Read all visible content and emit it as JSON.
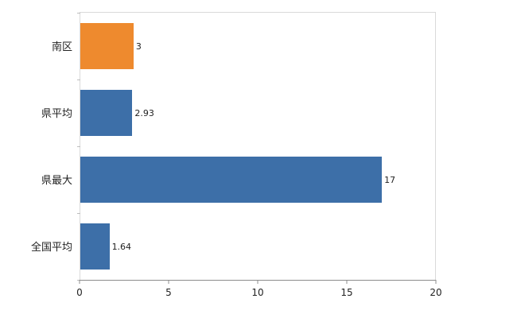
{
  "chart_data": {
    "type": "bar",
    "orientation": "horizontal",
    "title": "",
    "xlabel": "",
    "ylabel": "",
    "categories": [
      "南区",
      "県平均",
      "県最大",
      "全国平均"
    ],
    "values": [
      3,
      2.93,
      17,
      1.64
    ],
    "value_labels": [
      "3",
      "2.93",
      "17",
      "1.64"
    ],
    "bar_colors": [
      "#ee8a2e",
      "#3d6fa8",
      "#3d6fa8",
      "#3d6fa8"
    ],
    "xlim": [
      0,
      20
    ],
    "x_ticks": [
      0,
      5,
      10,
      15,
      20
    ],
    "x_tick_labels": [
      "0",
      "5",
      "10",
      "15",
      "20"
    ],
    "grid": false,
    "legend": false
  },
  "colors": {
    "background": "#ffffff",
    "plot_border": "#d9d9d9",
    "axis_line": "#8c8c8c",
    "text": "#222222",
    "bar_blue": "#3d6fa8",
    "bar_orange": "#ee8a2e"
  }
}
